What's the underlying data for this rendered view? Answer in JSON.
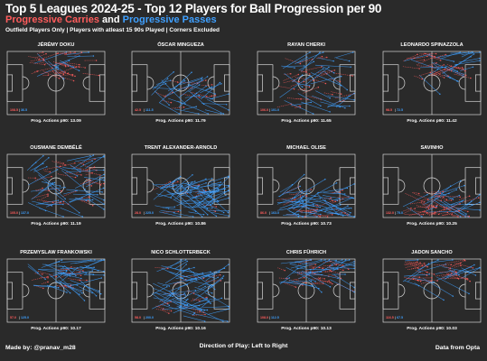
{
  "header": {
    "title": "Top 5 Leagues 2024-25 - Top 12 Players for Ball Progression per 90",
    "subtitle_carries": "Progressive Carries",
    "subtitle_and": "and",
    "subtitle_passes": "Progressive Passes",
    "note": "Outfield Players Only | Players with atleast 15 90s Played | Corners Excluded"
  },
  "footer": {
    "credit": "Made by: @pranav_m28",
    "direction": "Direction of Play: Left to Right",
    "source": "Data from Opta"
  },
  "colors": {
    "background": "#2a2a2a",
    "carries": "#ff5c5c",
    "passes": "#3fa0ff",
    "pitch_lines": "#d8d8d8"
  },
  "chart_data": [
    {
      "type": "scatter",
      "title": "JÉRÉMY DOKU",
      "carries_label": "108.5",
      "passes_label": "36.5",
      "caption": "Prog. Actions p90: 13.09",
      "dominant": "carries",
      "zone": "left-wing"
    },
    {
      "type": "scatter",
      "title": "ÓSCAR MINGUEZA",
      "carries_label": "42.5",
      "passes_label": "111.5",
      "caption": "Prog. Actions p90: 11.79",
      "dominant": "passes",
      "zone": "right-back"
    },
    {
      "type": "scatter",
      "title": "RAYAN CHERKI",
      "carries_label": "106.0",
      "passes_label": "101.0",
      "caption": "Prog. Actions p90: 11.65",
      "dominant": "mixed",
      "zone": "central"
    },
    {
      "type": "scatter",
      "title": "LEONARDO SPINAZZOLA",
      "carries_label": "98.5",
      "passes_label": "72.5",
      "caption": "Prog. Actions p90: 11.42",
      "dominant": "carries",
      "zone": "left-wing"
    },
    {
      "type": "scatter",
      "title": "OUSMANE DEMBÉLÉ",
      "carries_label": "105.0",
      "passes_label": "137.0",
      "caption": "Prog. Actions p90: 11.19",
      "dominant": "mixed",
      "zone": "central"
    },
    {
      "type": "scatter",
      "title": "TRENT ALEXANDER-ARNOLD",
      "carries_label": "28.0",
      "passes_label": "225.0",
      "caption": "Prog. Actions p90: 10.86",
      "dominant": "passes",
      "zone": "right-back"
    },
    {
      "type": "scatter",
      "title": "MICHAEL OLISE",
      "carries_label": "86.0",
      "passes_label": "163.0",
      "caption": "Prog. Actions p90: 10.73",
      "dominant": "passes",
      "zone": "right-wing"
    },
    {
      "type": "scatter",
      "title": "SAVINHO",
      "carries_label": "132.0",
      "passes_label": "75.0",
      "caption": "Prog. Actions p90: 10.25",
      "dominant": "carries",
      "zone": "right-wing"
    },
    {
      "type": "scatter",
      "title": "PRZEMYSLAW FRANKOWSKI",
      "carries_label": "57.0",
      "passes_label": "125.0",
      "caption": "Prog. Actions p90: 10.17",
      "dominant": "passes",
      "zone": "left-back"
    },
    {
      "type": "scatter",
      "title": "NICO SCHLOTTERBECK",
      "carries_label": "58.0",
      "passes_label": "200.0",
      "caption": "Prog. Actions p90: 10.16",
      "dominant": "passes",
      "zone": "centre-back"
    },
    {
      "type": "scatter",
      "title": "CHRIS FÜHRICH",
      "carries_label": "108.0",
      "passes_label": "112.5",
      "caption": "Prog. Actions p90: 10.13",
      "dominant": "mixed",
      "zone": "left-wing"
    },
    {
      "type": "scatter",
      "title": "JADON SANCHO",
      "carries_label": "116.5",
      "passes_label": "67.5",
      "caption": "Prog. Actions p90: 10.03",
      "dominant": "carries",
      "zone": "left-wing"
    }
  ]
}
